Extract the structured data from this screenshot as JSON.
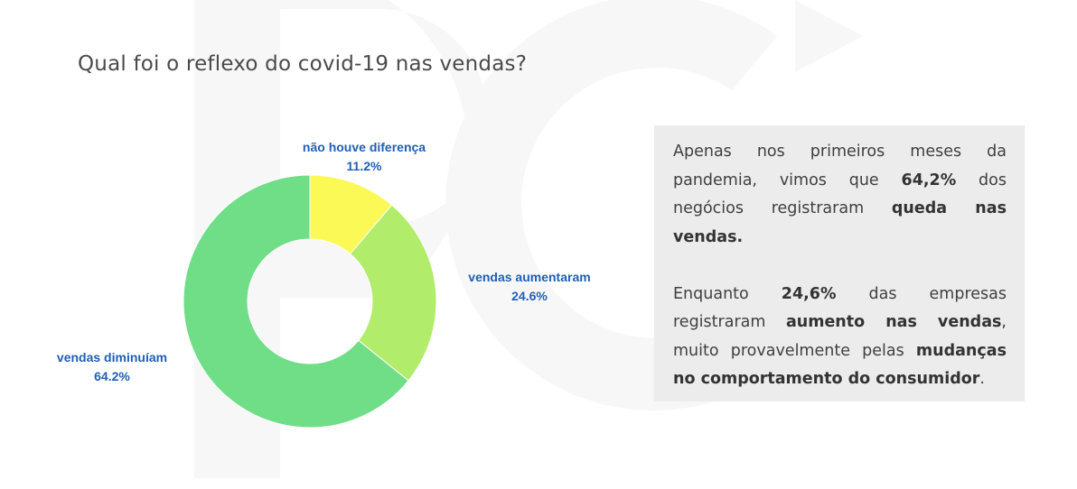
{
  "title": "Qual foi o reflexo do covid-19 nas vendas?",
  "chart_data": {
    "type": "pie",
    "donut": true,
    "categories": [
      "não houve diferença",
      "vendas aumentaram",
      "vendas diminuíam"
    ],
    "values": [
      11.2,
      24.6,
      64.2
    ],
    "value_labels": [
      "11.2%",
      "24.6%",
      "64.2%"
    ],
    "colors": [
      "#fbf956",
      "#b1ec6a",
      "#6fde87"
    ]
  },
  "textbox": {
    "p1": [
      {
        "t": "Apenas nos primeiros meses da pandemia, vimos que ",
        "b": false
      },
      {
        "t": "64,2%",
        "b": true
      },
      {
        "t": " dos negócios registraram ",
        "b": false
      },
      {
        "t": "queda nas vendas.",
        "b": true
      }
    ],
    "p2": [
      {
        "t": "Enquanto ",
        "b": false
      },
      {
        "t": "24,6%",
        "b": true
      },
      {
        "t": " das empresas registraram ",
        "b": false
      },
      {
        "t": "aumento nas vendas",
        "b": true
      },
      {
        "t": ", muito provavelmente pelas ",
        "b": false
      },
      {
        "t": "mudanças no comportamento do consumidor",
        "b": true
      },
      {
        "t": ".",
        "b": false
      }
    ]
  },
  "colors": {
    "label_blue": "#1f5fb4",
    "textbox_bg": "#ececec",
    "watermark": "#f6f6f6"
  }
}
